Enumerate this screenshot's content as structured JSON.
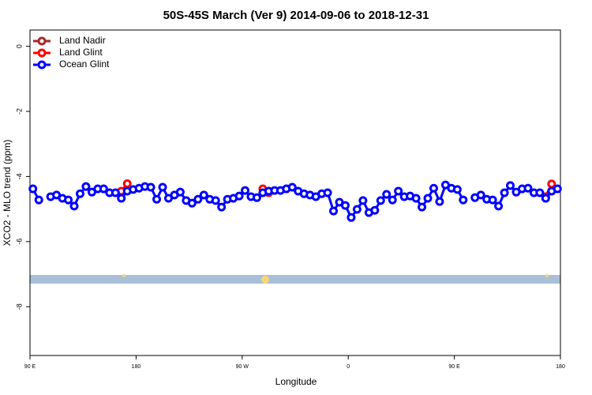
{
  "chart_data": {
    "type": "line",
    "title": "50S-45S March (Ver 9)   2014-09-06 to 2018-12-31",
    "xlabel": "Longitude",
    "ylabel": "XCO2 - MLO trend (ppm)",
    "xlim": [
      90,
      540
    ],
    "xticks": [
      {
        "value": 90,
        "label": "90 E"
      },
      180,
      {
        "value": 270,
        "label": "90 W"
      },
      {
        "value": 360,
        "label": "0"
      },
      {
        "value": 450,
        "label": "90 E"
      },
      {
        "value": 540,
        "label": "180"
      }
    ],
    "ylim": [
      -9.5,
      0.5
    ],
    "yticks": [
      0,
      -2,
      -4,
      -6,
      -8
    ],
    "legend": "top-left",
    "series": [
      {
        "name": "Land Nadir",
        "color": "#a52a2a",
        "x": [],
        "values": []
      },
      {
        "name": "Land Glint",
        "color": "#ff0000",
        "x": [
          167.5,
          172.5,
          177.5,
          287.5,
          292.5,
          297.5,
          527.5,
          532.5
        ],
        "values": [
          -4.45,
          -4.22,
          null,
          -4.38,
          -4.5,
          null,
          -4.62,
          -4.23
        ]
      },
      {
        "name": "Ocean Glint",
        "color": "#0000ff",
        "x": [
          92.5,
          97.5,
          102.5,
          107.5,
          112.5,
          117.5,
          122.5,
          127.5,
          132.5,
          137.5,
          142.5,
          147.5,
          152.5,
          157.5,
          162.5,
          167.5,
          172.5,
          177.5,
          182.5,
          187.5,
          192.5,
          197.5,
          202.5,
          207.5,
          212.5,
          217.5,
          222.5,
          227.5,
          232.5,
          237.5,
          242.5,
          247.5,
          252.5,
          257.5,
          262.5,
          267.5,
          272.5,
          277.5,
          282.5,
          287.5,
          292.5,
          297.5,
          302.5,
          307.5,
          312.5,
          317.5,
          322.5,
          327.5,
          332.5,
          337.5,
          342.5,
          347.5,
          352.5,
          357.5,
          362.5,
          367.5,
          372.5,
          377.5,
          382.5,
          387.5,
          392.5,
          397.5,
          402.5,
          407.5,
          412.5,
          417.5,
          422.5,
          427.5,
          432.5,
          437.5,
          442.5,
          447.5,
          452.5,
          457.5,
          462.5,
          467.5,
          472.5,
          477.5,
          482.5,
          487.5,
          492.5,
          497.5,
          502.5,
          507.5,
          512.5,
          517.5,
          522.5,
          527.5,
          532.5,
          537.5
        ],
        "values": [
          -4.38,
          -4.72,
          null,
          -4.62,
          -4.57,
          -4.67,
          -4.72,
          -4.91,
          -4.53,
          -4.31,
          -4.48,
          -4.38,
          -4.38,
          -4.5,
          -4.5,
          -4.67,
          -4.45,
          -4.4,
          -4.36,
          -4.31,
          -4.33,
          -4.7,
          -4.33,
          -4.67,
          -4.57,
          -4.48,
          -4.74,
          -4.82,
          -4.7,
          -4.57,
          -4.7,
          -4.74,
          -4.94,
          -4.7,
          -4.67,
          -4.6,
          -4.43,
          -4.62,
          -4.65,
          -4.5,
          -4.45,
          -4.43,
          -4.43,
          -4.38,
          -4.33,
          -4.45,
          -4.53,
          -4.57,
          -4.62,
          -4.53,
          -4.5,
          -5.06,
          -4.79,
          -4.89,
          -5.26,
          -5.01,
          -4.74,
          -5.11,
          -5.04,
          -4.74,
          -4.55,
          -4.72,
          -4.45,
          -4.62,
          -4.6,
          -4.67,
          -4.94,
          -4.67,
          -4.36,
          -4.77,
          -4.26,
          -4.36,
          -4.4,
          -4.72,
          null,
          -4.65,
          -4.57,
          -4.7,
          -4.72,
          -4.91,
          -4.5,
          -4.28,
          -4.48,
          -4.38,
          -4.36,
          -4.5,
          -4.5,
          -4.67,
          -4.45,
          -4.38
        ]
      }
    ]
  }
}
